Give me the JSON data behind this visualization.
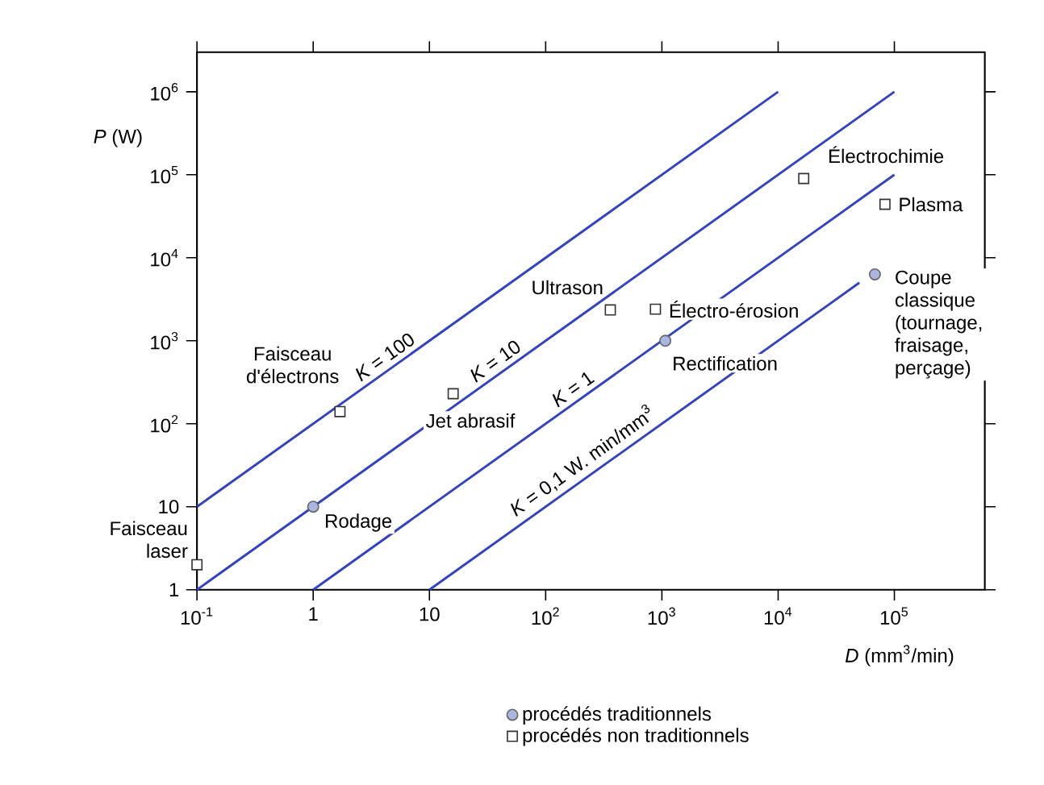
{
  "chart_data": {
    "type": "scatter",
    "xlabel": "*D* (mm$^{3}$/min)",
    "ylabel": "*P* (W)",
    "log": "xy",
    "xlim": [
      0.1,
      600000
    ],
    "ylim": [
      1,
      3000000
    ],
    "xticks": [
      {
        "value": 0.1,
        "label": "10$^{-1}$"
      },
      1,
      10,
      {
        "value": 100,
        "label": "10$^{2}$"
      },
      {
        "value": 1000,
        "label": "10$^{3}$"
      },
      {
        "value": 10000,
        "label": "10$^{4}$"
      },
      {
        "value": 100000,
        "label": "10$^{5}$"
      }
    ],
    "yticks": [
      1,
      10,
      {
        "value": 100,
        "label": "10$^{2}$"
      },
      {
        "value": 1000,
        "label": "10$^{3}$"
      },
      {
        "value": 10000,
        "label": "10$^{4}$"
      },
      {
        "value": 100000,
        "label": "10$^{5}$"
      },
      {
        "value": 1000000,
        "label": "10$^{6}$"
      }
    ],
    "grid": false,
    "legend": "bottom",
    "series": [
      {
        "type": "line",
        "color": "#3344bb",
        "marker": "none",
        "x": [
          0.1,
          10000
        ],
        "values": [
          10,
          1000000
        ]
      },
      {
        "type": "line",
        "color": "#3344bb",
        "marker": "none",
        "x": [
          0.1,
          100000
        ],
        "values": [
          1,
          1000000
        ]
      },
      {
        "type": "line",
        "color": "#3344bb",
        "marker": "none",
        "x": [
          1,
          100000
        ],
        "values": [
          1,
          100000
        ]
      },
      {
        "type": "line",
        "color": "#3344bb",
        "marker": "none",
        "x": [
          10,
          50000
        ],
        "values": [
          1,
          5000
        ]
      },
      {
        "name": "procédés traditionnels",
        "color": "#a8b6e0",
        "marker": "circle",
        "x": [
          1,
          1070,
          68000
        ],
        "values": [
          10,
          1000,
          6300
        ]
      },
      {
        "name": "procédés non traditionnels",
        "color": "#333333",
        "marker": "square",
        "x": [
          0.1,
          1.7,
          16,
          360,
          880,
          16600,
          83000
        ],
        "values": [
          2,
          140,
          230,
          2350,
          2400,
          90000,
          44000
        ]
      }
    ],
    "annotations": [
      {
        "text": "Faisceau laser",
        "x": 0.1,
        "y": 2
      },
      {
        "text": "Faisceau d'électrons",
        "x": 1.7,
        "y": 140
      },
      {
        "text": "Rodage",
        "x": 1,
        "y": 10
      },
      {
        "text": "Jet abrasif",
        "x": 16,
        "y": 230
      },
      {
        "text": "Ultrason",
        "x": 360,
        "y": 2350
      },
      {
        "text": "Électro-érosion",
        "x": 880,
        "y": 2400
      },
      {
        "text": "Rectification",
        "x": 1070,
        "y": 1000
      },
      {
        "text": "Électrochimie",
        "x": 16600,
        "y": 90000
      },
      {
        "text": "Plasma",
        "x": 83000,
        "y": 44000
      },
      {
        "text": "Coupe classique (tournage, fraisage, perçage)",
        "x": 68000,
        "y": 6300
      },
      {
        "text": "*K* = 100",
        "x": 4.6,
        "y": 460
      },
      {
        "text": "*K* = 10",
        "x": 41,
        "y": 410
      },
      {
        "text": "*K* = 1",
        "x": 190,
        "y": 190
      },
      {
        "text": "*K* = 0,1 W. min/mm$^{3}$",
        "x": 237,
        "y": 24
      }
    ]
  }
}
